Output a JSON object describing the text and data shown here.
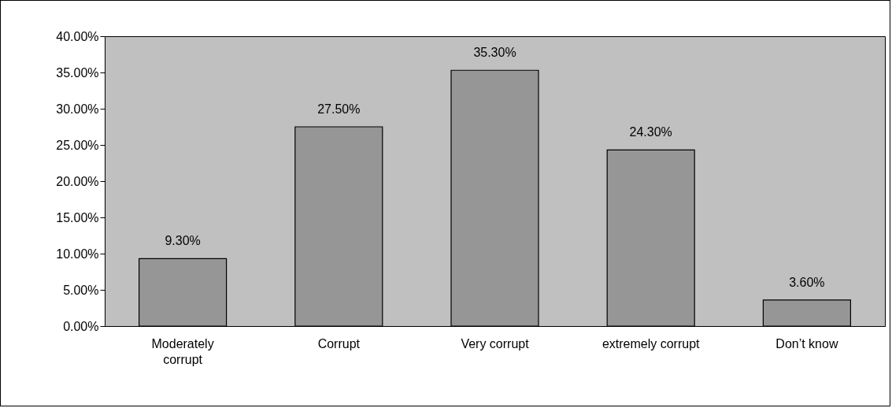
{
  "chart_data": {
    "type": "bar",
    "categories": [
      "Moderately corrupt",
      "Corrupt",
      "Very corrupt",
      "extremely corrupt",
      "Don’t know"
    ],
    "values": [
      9.3,
      27.5,
      35.3,
      24.3,
      3.6
    ],
    "value_labels": [
      "9.30%",
      "27.50%",
      "35.30%",
      "24.30%",
      "3.60%"
    ],
    "color": "#969696",
    "ylim": [
      0,
      40
    ],
    "yticks": [
      {
        "value": 0,
        "label": "0.00%"
      },
      {
        "value": 5,
        "label": "5.00%"
      },
      {
        "value": 10,
        "label": "10.00%"
      },
      {
        "value": 15,
        "label": "15.00%"
      },
      {
        "value": 20,
        "label": "20.00%"
      },
      {
        "value": 25,
        "label": "25.00%"
      },
      {
        "value": 30,
        "label": "30.00%"
      },
      {
        "value": 35,
        "label": "35.00%"
      },
      {
        "value": 40,
        "label": "40.00%"
      }
    ],
    "grid": false
  }
}
